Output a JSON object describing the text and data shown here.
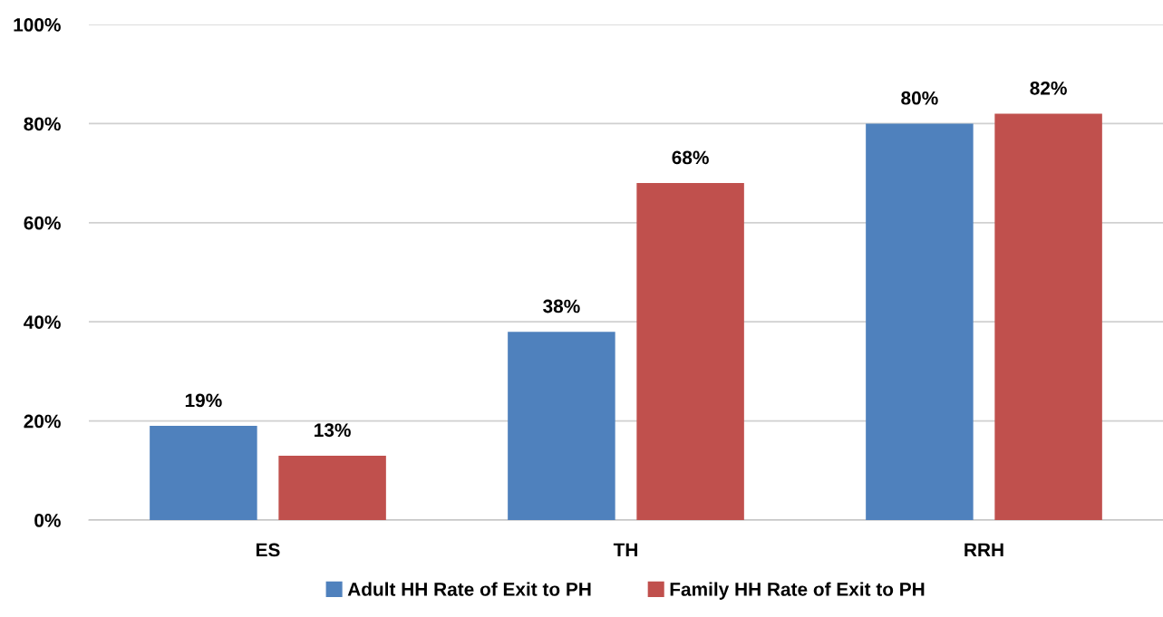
{
  "chart_data": {
    "type": "bar",
    "categories": [
      "ES",
      "TH",
      "RRH"
    ],
    "series": [
      {
        "name": "Adult HH Rate of Exit to PH",
        "color": "#4f81bd",
        "values": [
          19,
          38,
          80
        ],
        "value_labels": [
          "19%",
          "38%",
          "80%"
        ]
      },
      {
        "name": "Family HH Rate of Exit to PH",
        "color": "#c0504d",
        "values": [
          13,
          68,
          82
        ],
        "value_labels": [
          "13%",
          "68%",
          "82%"
        ]
      }
    ],
    "ylim": [
      0,
      100
    ],
    "yticks": [
      {
        "value": 0,
        "label": "0%"
      },
      {
        "value": 20,
        "label": "20%"
      },
      {
        "value": 40,
        "label": "40%"
      },
      {
        "value": 60,
        "label": "60%"
      },
      {
        "value": 80,
        "label": "80%"
      },
      {
        "value": 100,
        "label": "100%"
      }
    ],
    "grid": "y",
    "legend": "bottom"
  }
}
